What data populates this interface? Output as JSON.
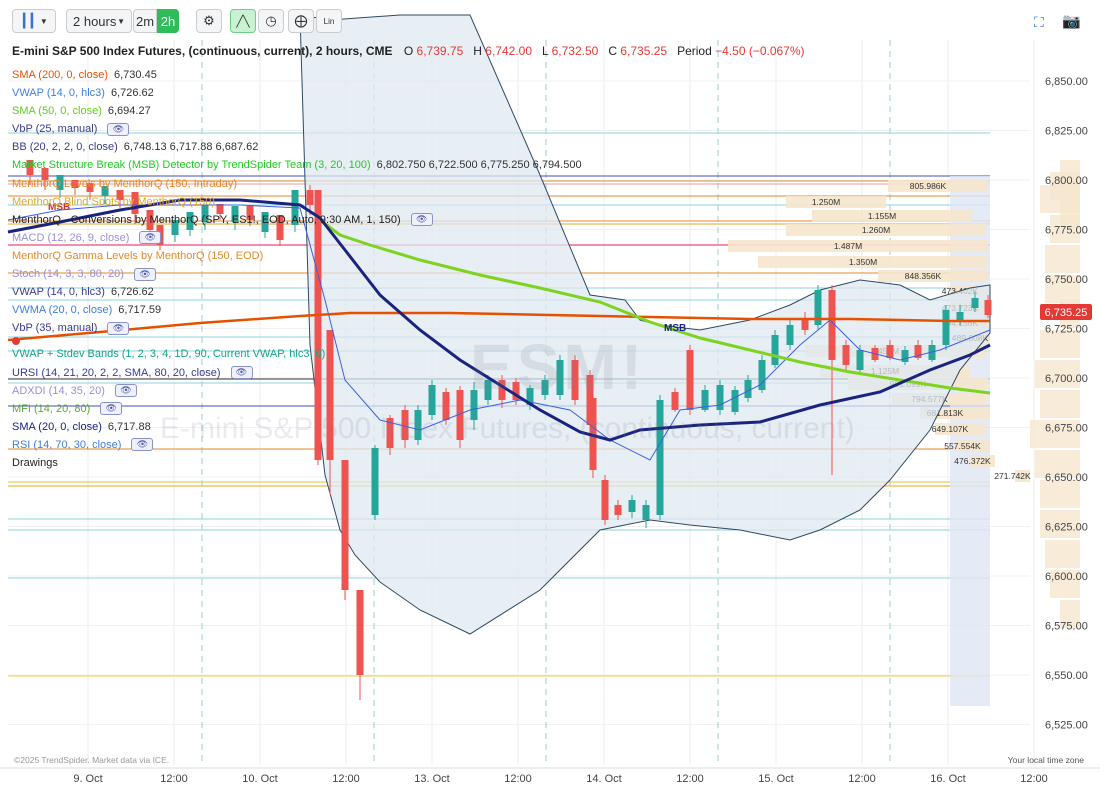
{
  "toolbar": {
    "interval_select": "2 hours",
    "interval_2m": "2m",
    "interval_2h": "2h",
    "lin_label": "Lin"
  },
  "title": {
    "instrument": "E-mini S&P 500 Index Futures, (continuous, current), 2 hours, CME",
    "o_label": "O",
    "o_value": "6,739.75",
    "h_label": "H",
    "h_value": "6,742.00",
    "l_label": "L",
    "l_value": "6,732.50",
    "c_label": "C",
    "c_value": "6,735.25",
    "period_label": "Period",
    "period_value": "−4.50 (−0.067%)"
  },
  "watermark": {
    "symbol": "ESM!",
    "name": "E-mini S&P 500 Index Futures, (continuous, current)"
  },
  "legend": [
    {
      "label": "SMA (200, 0, close)",
      "value": "6,730.45",
      "color": "#e65100"
    },
    {
      "label": "VWAP (14, 0, hlc3)",
      "value": "6,726.62",
      "color": "#3d7fe0"
    },
    {
      "label": "SMA (50, 0, close)",
      "value": "6,694.27",
      "color": "#5fcf1a"
    },
    {
      "label": "VbP (25, manual)",
      "value": "",
      "color": "#3b3b8f",
      "eye": true
    },
    {
      "label": "BB (20, 2, 2, 0, close)",
      "value": "6,748.13 6,717.88 6,687.62",
      "color": "#3b3b8f"
    },
    {
      "label": "Market Structure Break (MSB) Detector by TrendSpider Team (3, 20, 100)",
      "value": "6,802.750 6,722.500 6,775.250 6,794.500",
      "color": "#22cc22"
    },
    {
      "label": "MenthorQ Levels by MenthorQ (150, Intraday)",
      "value": "",
      "color": "#e58a2a"
    },
    {
      "label": "MenthorQ Blind Spots by MenthorQ (150)",
      "value": "",
      "color": "#e5a62a"
    },
    {
      "label": "MenthorQ - Conversions by MenthorQ (SPY, ES1!, EOD, Auto, 9:30 AM, 1, 150)",
      "value": "",
      "color": "#222222",
      "eye": true
    },
    {
      "label": "MACD (12, 26, 9, close)",
      "value": "",
      "color": "#9b8fd6",
      "eye": true
    },
    {
      "label": "MenthorQ Gamma Levels by MenthorQ (150, EOD)",
      "value": "",
      "color": "#e58a2a"
    },
    {
      "label": "Stoch (14, 3, 3, 80, 20)",
      "value": "",
      "color": "#9b8fd6",
      "eye": true
    },
    {
      "label": "VWAP (14, 0, hlc3)",
      "value": "6,726.62",
      "color": "#3b3b8f"
    },
    {
      "label": "VWMA (20, 0, close)",
      "value": "6,717.59",
      "color": "#3d7fe0"
    },
    {
      "label": "VbP (35, manual)",
      "value": "",
      "color": "#3b3b8f",
      "eye": true
    },
    {
      "label": "",
      "value": "",
      "color": "#e53935"
    },
    {
      "label": "VWAP + Stdev Bands (1, 2, 3, 4, 1D, 90, Current VWAP, hlc3, 0)",
      "value": "",
      "color": "#12a68a"
    },
    {
      "label": "URSI (14, 21, 20, 2, 2, SMA, 80, 20, close)",
      "value": "",
      "color": "#3b3b8f",
      "eye": true
    },
    {
      "label": "ADXDI (14, 35, 20)",
      "value": "",
      "color": "#9b8fd6",
      "eye": true
    },
    {
      "label": "MFI (14, 20, 80)",
      "value": "",
      "color": "#5fa830",
      "eye": true
    },
    {
      "label": "SMA (20, 0, close)",
      "value": "6,717.88",
      "color": "#1a237e"
    },
    {
      "label": "RSI (14, 70, 30, close)",
      "value": "",
      "color": "#3d7fe0",
      "eye": true
    },
    {
      "label": "Drawings",
      "value": "",
      "color": "#222222"
    }
  ],
  "eye_glyph": "👁",
  "price_axis": {
    "ticks": [
      "6,850.00",
      "6,825.00",
      "6,800.00",
      "6,775.00",
      "6,750.00",
      "6,725.00",
      "6,700.00",
      "6,675.00",
      "6,650.00",
      "6,625.00",
      "6,600.00",
      "6,575.00",
      "6,550.00",
      "6,525.00"
    ],
    "current_price": "6,735.25",
    "current_color": "#e53935"
  },
  "time_axis": [
    "9. Oct",
    "12:00",
    "10. Oct",
    "12:00",
    "13. Oct",
    "12:00",
    "14. Oct",
    "12:00",
    "15. Oct",
    "12:00",
    "16. Oct",
    "12:00"
  ],
  "annotations": {
    "msb1": "MSB",
    "msb2": "MSB"
  },
  "volume_profile": [
    {
      "label": "805.986K"
    },
    {
      "label": "1.250M"
    },
    {
      "label": "1.155M"
    },
    {
      "label": "1.260M"
    },
    {
      "label": "1.487M"
    },
    {
      "label": "1.350M"
    },
    {
      "label": "848.356K"
    },
    {
      "label": "473.402K"
    },
    {
      "label": "473.723K"
    },
    {
      "label": "594.156K"
    },
    {
      "label": "489.608K"
    },
    {
      "label": "1.452M"
    },
    {
      "label": "1.125M"
    },
    {
      "label": "991.099K"
    },
    {
      "label": "794.577K"
    },
    {
      "label": "681.813K"
    },
    {
      "label": "649.107K"
    },
    {
      "label": "557.554K"
    },
    {
      "label": "476.372K"
    },
    {
      "label": "271.742K"
    }
  ],
  "footer": {
    "copyright": "©2025 TrendSpider. Market data via ICE.",
    "timezone": "Your local time zone"
  },
  "colors": {
    "bull": "#26a69a",
    "bear": "#ef5350",
    "sma200": "#e65100",
    "sma50": "#7ed321",
    "sma20": "#1a237e",
    "bb_fill": "#e3ebf2"
  }
}
